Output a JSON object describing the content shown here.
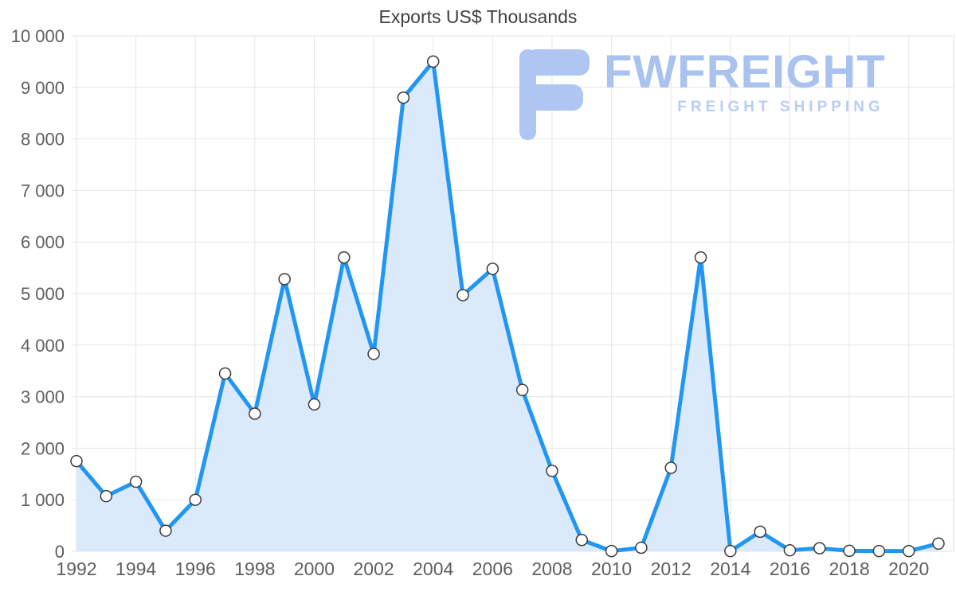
{
  "title": "Exports US$ Thousands",
  "watermark": {
    "brand": "FWFREIGHT",
    "tagline": "FREIGHT SHIPPING"
  },
  "colors": {
    "line": "#2196f3",
    "area": "#dbeafb",
    "marker_fill": "#ffffff",
    "marker_stroke": "#3b3b3b",
    "grid": "#e6e6e6",
    "plot_border": "#e0e0e0",
    "axis_text": "#5f5f5f",
    "title_text": "#3f3f3f",
    "watermark": "#aec6f1"
  },
  "chart_data": {
    "type": "area",
    "title": "Exports US$ Thousands",
    "xlabel": "",
    "ylabel": "",
    "x": [
      1992,
      1993,
      1994,
      1995,
      1996,
      1997,
      1998,
      1999,
      2000,
      2001,
      2002,
      2003,
      2004,
      2005,
      2006,
      2007,
      2008,
      2009,
      2010,
      2011,
      2012,
      2013,
      2014,
      2015,
      2016,
      2017,
      2018,
      2019,
      2020,
      2021
    ],
    "values": [
      1750,
      1070,
      1350,
      400,
      1000,
      3450,
      2670,
      5280,
      2850,
      5700,
      3830,
      8800,
      9500,
      4970,
      5480,
      3130,
      1560,
      220,
      5,
      70,
      1620,
      5700,
      5,
      380,
      20,
      60,
      10,
      5,
      5,
      150
    ],
    "ylim": [
      0,
      10000
    ],
    "y_ticks": [
      0,
      1000,
      2000,
      3000,
      4000,
      5000,
      6000,
      7000,
      8000,
      9000,
      10000
    ],
    "x_tick_step": 2,
    "x_tick_labels": [
      "1992",
      "1994",
      "1996",
      "1998",
      "2000",
      "2002",
      "2004",
      "2006",
      "2008",
      "2010",
      "2012",
      "2014",
      "2016",
      "2018",
      "2020"
    ],
    "grid": true,
    "legend": "none",
    "marker": "circle"
  }
}
